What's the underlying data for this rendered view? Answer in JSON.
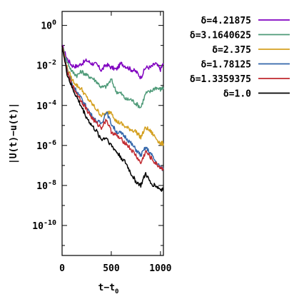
{
  "chart_data": {
    "type": "line",
    "xlabel": "t−t",
    "xlabel_sub": "0",
    "ylabel": "|U(t)−u(t)|",
    "ylabel_overline_letter": "U",
    "xlim": [
      0,
      1030
    ],
    "ylim_log10": [
      -11.5,
      0.7
    ],
    "yscale": "log",
    "x_ticks": [
      {
        "value": 0,
        "label": "0"
      },
      {
        "value": 500,
        "label": "500"
      },
      {
        "value": 1000,
        "label": "1000"
      }
    ],
    "y_ticks": [
      {
        "exp": 0,
        "base": "10",
        "sup": "0"
      },
      {
        "exp": -2,
        "base": "10",
        "sup": "-2"
      },
      {
        "exp": -4,
        "base": "10",
        "sup": "-4"
      },
      {
        "exp": -6,
        "base": "10",
        "sup": "-6"
      },
      {
        "exp": -8,
        "base": "10",
        "sup": "-8"
      },
      {
        "exp": -10,
        "base": "10",
        "sup": "-10"
      }
    ],
    "legend_position": "right",
    "series": [
      {
        "name": "δ=4.21875",
        "color": "#8000c0",
        "x": [
          0,
          50,
          100,
          150,
          200,
          250,
          300,
          350,
          400,
          450,
          500,
          550,
          600,
          650,
          700,
          750,
          800,
          850,
          900,
          950,
          1000,
          1030
        ],
        "log10y": [
          -1.0,
          -1.65,
          -2.0,
          -2.05,
          -1.9,
          -1.75,
          -1.9,
          -1.95,
          -2.25,
          -1.95,
          -2.1,
          -2.2,
          -1.9,
          -2.05,
          -2.2,
          -2.3,
          -2.6,
          -2.1,
          -2.1,
          -1.9,
          -2.2,
          -1.9
        ]
      },
      {
        "name": "δ=3.1640625",
        "color": "#4e9a78",
        "x": [
          0,
          50,
          100,
          150,
          200,
          250,
          300,
          350,
          400,
          450,
          500,
          550,
          600,
          650,
          700,
          750,
          800,
          850,
          900,
          950,
          1000,
          1030
        ],
        "log10y": [
          -1.0,
          -1.8,
          -2.3,
          -2.5,
          -2.3,
          -2.5,
          -2.6,
          -2.8,
          -3.1,
          -3.05,
          -2.7,
          -3.3,
          -3.4,
          -3.7,
          -3.7,
          -3.9,
          -4.1,
          -3.4,
          -3.3,
          -3.1,
          -3.2,
          -3.1
        ]
      },
      {
        "name": "δ=2.375",
        "color": "#d4a020",
        "x": [
          0,
          50,
          100,
          150,
          200,
          250,
          300,
          350,
          400,
          450,
          500,
          550,
          600,
          650,
          700,
          750,
          800,
          850,
          900,
          950,
          1000,
          1030
        ],
        "log10y": [
          -1.0,
          -2.1,
          -2.7,
          -3.0,
          -3.2,
          -3.6,
          -3.9,
          -4.2,
          -4.5,
          -4.4,
          -4.3,
          -4.8,
          -4.9,
          -5.1,
          -5.2,
          -5.3,
          -5.6,
          -5.1,
          -5.3,
          -5.6,
          -5.9,
          -5.9
        ]
      },
      {
        "name": "δ=1.78125",
        "color": "#3366aa",
        "x": [
          0,
          50,
          100,
          150,
          200,
          250,
          300,
          350,
          400,
          450,
          500,
          550,
          600,
          650,
          700,
          750,
          800,
          850,
          900,
          950,
          1000,
          1030
        ],
        "log10y": [
          -1.0,
          -2.2,
          -2.9,
          -3.3,
          -3.7,
          -4.1,
          -4.5,
          -4.8,
          -4.9,
          -4.3,
          -4.9,
          -5.3,
          -5.4,
          -5.6,
          -5.9,
          -6.2,
          -6.5,
          -6.1,
          -6.4,
          -6.8,
          -7.1,
          -7.2
        ]
      },
      {
        "name": "δ=1.3359375",
        "color": "#c0282e",
        "x": [
          0,
          50,
          100,
          150,
          200,
          250,
          300,
          350,
          400,
          450,
          500,
          550,
          600,
          650,
          700,
          750,
          800,
          850,
          900,
          950,
          1000,
          1030
        ],
        "log10y": [
          -1.0,
          -2.3,
          -3.0,
          -3.4,
          -3.8,
          -4.2,
          -4.6,
          -4.9,
          -5.1,
          -4.7,
          -5.3,
          -5.5,
          -5.7,
          -5.9,
          -6.2,
          -6.5,
          -6.9,
          -6.3,
          -6.6,
          -6.9,
          -7.1,
          -7.2
        ]
      },
      {
        "name": "δ=1.0",
        "color": "#000000",
        "x": [
          0,
          50,
          100,
          150,
          200,
          250,
          300,
          350,
          400,
          450,
          500,
          550,
          600,
          650,
          700,
          750,
          800,
          850,
          900,
          950,
          1000,
          1030
        ],
        "log10y": [
          -1.0,
          -2.4,
          -3.1,
          -3.6,
          -4.1,
          -4.6,
          -5.0,
          -5.3,
          -5.7,
          -5.6,
          -6.0,
          -6.3,
          -6.6,
          -6.9,
          -7.4,
          -7.8,
          -8.0,
          -7.4,
          -7.9,
          -8.0,
          -8.2,
          -8.2
        ]
      }
    ]
  }
}
